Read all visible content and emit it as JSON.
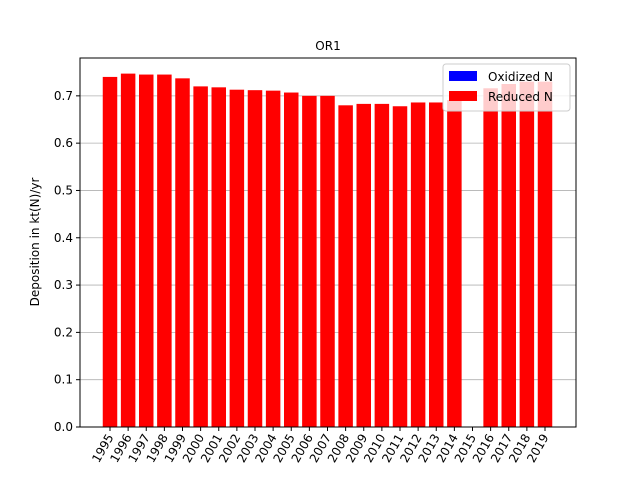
{
  "chart_data": {
    "type": "bar",
    "title": "OR1",
    "xlabel": "",
    "ylabel": "Deposition in kt(N)/yr",
    "categories": [
      "1995",
      "1996",
      "1997",
      "1998",
      "1999",
      "2000",
      "2001",
      "2002",
      "2003",
      "2004",
      "2005",
      "2006",
      "2007",
      "2008",
      "2009",
      "2010",
      "2011",
      "2012",
      "2013",
      "2014",
      "2015",
      "2016",
      "2017",
      "2018",
      "2019"
    ],
    "series": [
      {
        "name": "Oxidized N",
        "color": "#0000ff",
        "values": [
          0,
          0,
          0,
          0,
          0,
          0,
          0,
          0,
          0,
          0,
          0,
          0,
          0,
          0,
          0,
          0,
          0,
          0,
          0,
          0,
          0,
          0,
          0,
          0,
          0
        ]
      },
      {
        "name": "Reduced N",
        "color": "#ff0000",
        "values": [
          0.74,
          0.747,
          0.745,
          0.745,
          0.737,
          0.72,
          0.718,
          0.713,
          0.712,
          0.711,
          0.707,
          0.7,
          0.7,
          0.68,
          0.683,
          0.683,
          0.678,
          0.686,
          0.686,
          0.691,
          null,
          0.716,
          0.725,
          0.73,
          0.73
        ]
      }
    ],
    "stacked": true,
    "ylim": [
      0,
      0.78
    ],
    "yticks": [
      "0.0",
      "0.1",
      "0.2",
      "0.3",
      "0.4",
      "0.5",
      "0.6",
      "0.7"
    ],
    "grid": "horizontal",
    "legend_position": "top-right"
  }
}
